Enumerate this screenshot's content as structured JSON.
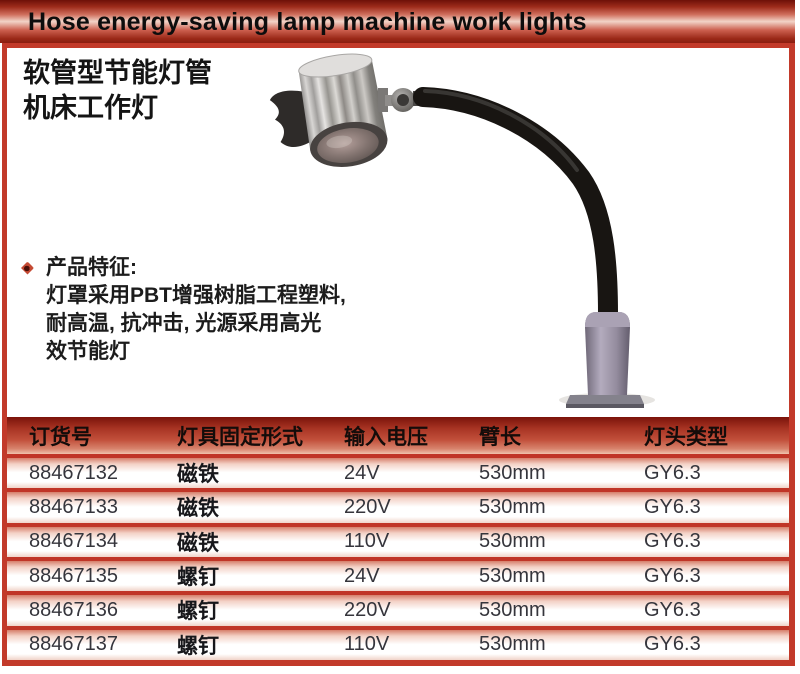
{
  "header": {
    "title_en": "Hose energy-saving lamp machine work lights"
  },
  "product": {
    "title_zh_line1": "软管型节能灯管",
    "title_zh_line2": "机床工作灯",
    "features_heading": "产品特征:",
    "features_lines": [
      "灯罩采用PBT增强树脂工程塑料,",
      "耐高温, 抗冲击, 光源采用高光",
      "效节能灯"
    ],
    "photo_description": "工作灯照片: 银色铝灯头、黑色软管臂、灰色安装底座"
  },
  "table": {
    "headers": [
      "订货号",
      "灯具固定形式",
      "输入电压",
      "臂长",
      "灯头类型"
    ],
    "rows": [
      [
        "88467132",
        "磁铁",
        "24V",
        "530mm",
        "GY6.3"
      ],
      [
        "88467133",
        "磁铁",
        "220V",
        "530mm",
        "GY6.3"
      ],
      [
        "88467134",
        "磁铁",
        "110V",
        "530mm",
        "GY6.3"
      ],
      [
        "88467135",
        "螺钉",
        "24V",
        "530mm",
        "GY6.3"
      ],
      [
        "88467136",
        "螺钉",
        "220V",
        "530mm",
        "GY6.3"
      ],
      [
        "88467137",
        "螺钉",
        "110V",
        "530mm",
        "GY6.3"
      ]
    ]
  },
  "icons": {
    "feature_bullet": "diamond-bullet-icon"
  },
  "colors": {
    "accent_red": "#c23a2a",
    "deep_red": "#7b130a",
    "band_highlight": "#f2d4c8",
    "row_top_pink": "#d67f6b",
    "text_dark": "#17171b"
  }
}
